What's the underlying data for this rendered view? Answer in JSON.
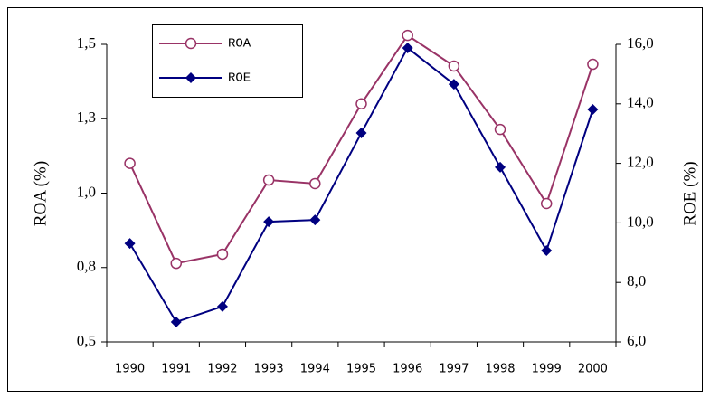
{
  "chart_data": {
    "type": "line",
    "categories": [
      "1990",
      "1991",
      "1992",
      "1993",
      "1994",
      "1995",
      "1996",
      "1997",
      "1998",
      "1999",
      "2000"
    ],
    "series": [
      {
        "name": "ROA",
        "color": "#993366",
        "marker": "circle",
        "values": [
          1.1,
          0.764,
          0.795,
          1.044,
          1.032,
          1.3,
          1.53,
          1.427,
          1.214,
          0.965,
          1.433
        ]
      },
      {
        "name": "ROE",
        "color": "#000080",
        "marker": "diamond",
        "axis": "y2",
        "values": [
          9.31,
          6.67,
          7.19,
          10.04,
          10.1,
          13.02,
          15.88,
          14.66,
          11.87,
          9.07,
          13.81
        ]
      }
    ],
    "ylabel": "ROA (%)",
    "y2label": "ROE (%)",
    "ylim": [
      0.5,
      1.5
    ],
    "yticks": [
      {
        "value": 0.5,
        "label": "0,5"
      },
      {
        "value": 0.75,
        "label": "0,8"
      },
      {
        "value": 1.0,
        "label": "1,0"
      },
      {
        "value": 1.25,
        "label": "1,3"
      },
      {
        "value": 1.5,
        "label": "1,5"
      }
    ],
    "y2lim": [
      6,
      16
    ],
    "y2ticks": [
      {
        "value": 6,
        "label": "6,0"
      },
      {
        "value": 8,
        "label": "8,0"
      },
      {
        "value": 10,
        "label": "10,0"
      },
      {
        "value": 12,
        "label": "12,0"
      },
      {
        "value": 14,
        "label": "14,0"
      },
      {
        "value": 16,
        "label": "16,0"
      }
    ],
    "legend": "top-left"
  }
}
